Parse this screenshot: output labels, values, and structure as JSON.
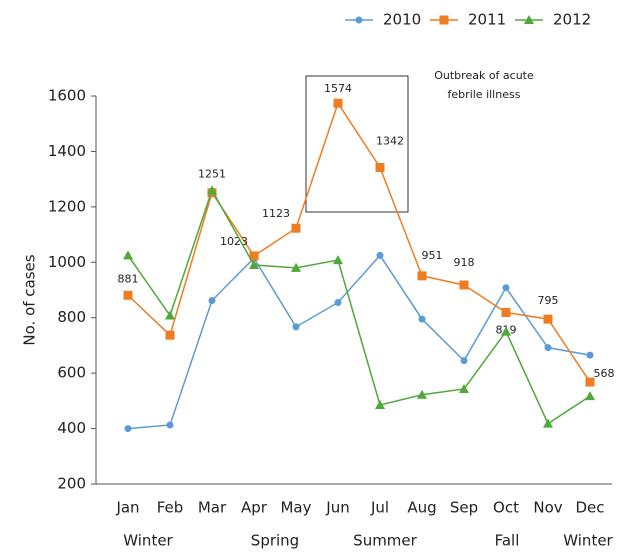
{
  "chart_data": {
    "type": "line",
    "y_label": "No. of cases",
    "annotation": [
      "Outbreak of acute",
      "febrile illness"
    ],
    "categories": [
      "Jan",
      "Feb",
      "Mar",
      "Apr",
      "May",
      "Jun",
      "Jul",
      "Aug",
      "Sep",
      "Oct",
      "Nov",
      "Dec"
    ],
    "seasons": [
      "Winter",
      "Spring",
      "Summer",
      "Fall",
      "Winter"
    ],
    "series": [
      {
        "name": "2010",
        "color": "#5b9bd5",
        "marker": "circle",
        "values": [
          400,
          413,
          862,
          1015,
          767,
          855,
          1025,
          795,
          645,
          908,
          692,
          665
        ]
      },
      {
        "name": "2011",
        "color": "#f07c21",
        "marker": "square",
        "values": [
          881,
          737,
          1251,
          1023,
          1123,
          1574,
          1342,
          951,
          918,
          819,
          795,
          568
        ],
        "labels_shown": [
          true,
          false,
          true,
          true,
          true,
          true,
          true,
          true,
          true,
          true,
          true,
          true
        ]
      },
      {
        "name": "2012",
        "color": "#4ea83a",
        "marker": "triangle",
        "values": [
          1025,
          808,
          1260,
          990,
          980,
          1008,
          485,
          522,
          543,
          750,
          418,
          517
        ]
      }
    ],
    "ylim": [
      200,
      1600
    ],
    "yticks": [
      200,
      400,
      600,
      800,
      1000,
      1200,
      1400,
      1600
    ],
    "legend": "top-right"
  }
}
